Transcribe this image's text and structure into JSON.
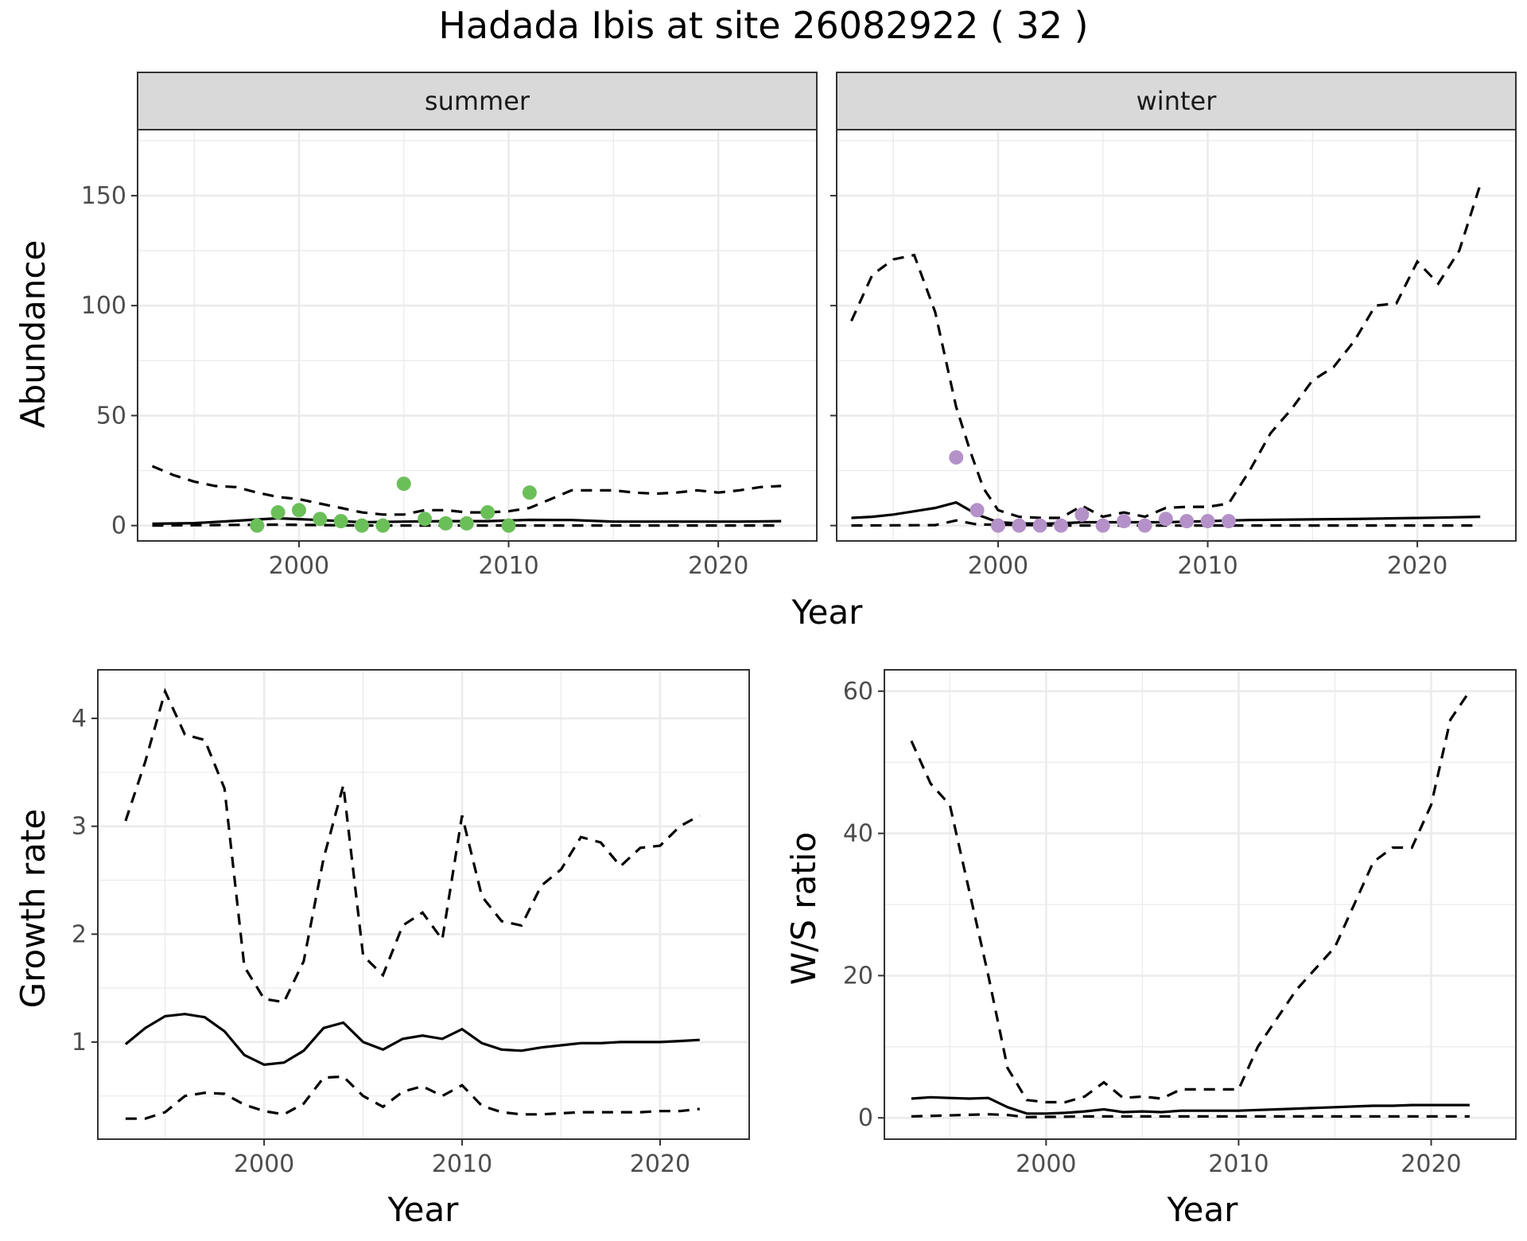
{
  "figure": {
    "title": "Hadada Ibis at site 26082922 ( 32 )"
  },
  "chart_data": [
    {
      "type": "line",
      "panel": "summer",
      "strip_label": "summer",
      "xlabel": "Year",
      "ylabel": "Abundance",
      "shared_xlabel": "Year",
      "xlim": [
        1992.3,
        2024.7
      ],
      "ylim": [
        -7,
        180
      ],
      "x_ticks": [
        2000,
        2010,
        2020
      ],
      "y_ticks": [
        0,
        50,
        100,
        150
      ],
      "point_color": "#6bbf59",
      "series": [
        {
          "role": "estimate",
          "style": "solid",
          "x": [
            1993,
            1995,
            1997,
            1999,
            2001,
            2003,
            2005,
            2007,
            2009,
            2011,
            2013,
            2015,
            2017,
            2019,
            2021,
            2023
          ],
          "values": [
            0.8,
            1.1,
            2.2,
            3.3,
            2.5,
            1.5,
            1.8,
            2,
            2,
            2.6,
            2.5,
            1.8,
            1.8,
            1.8,
            1.8,
            2
          ]
        },
        {
          "role": "upper",
          "style": "dashed",
          "x": [
            1993,
            1994,
            1995,
            1996,
            1997,
            1998,
            1999,
            2000,
            2001,
            2002,
            2003,
            2004,
            2005,
            2006,
            2007,
            2008,
            2009,
            2010,
            2011,
            2012,
            2013,
            2014,
            2015,
            2016,
            2017,
            2018,
            2019,
            2020,
            2021,
            2022,
            2023
          ],
          "values": [
            27,
            23,
            20,
            18,
            17.5,
            15,
            13,
            12,
            10,
            8,
            6,
            5,
            5,
            7,
            7,
            6,
            6,
            6.5,
            8,
            12,
            16,
            16,
            16,
            15,
            14.5,
            15,
            16,
            15,
            16,
            17.5,
            18
          ]
        },
        {
          "role": "lower",
          "style": "dashed",
          "x": [
            1993,
            1999,
            2003,
            2010,
            2015,
            2023
          ],
          "values": [
            0,
            0.4,
            0,
            0,
            0,
            0
          ]
        }
      ],
      "points": {
        "x": [
          1998,
          1999,
          2000,
          2001,
          2002,
          2003,
          2004,
          2005,
          2006,
          2007,
          2008,
          2009,
          2010,
          2011
        ],
        "values": [
          0,
          6,
          7,
          3,
          2,
          0,
          0,
          19,
          3,
          1,
          1,
          6,
          0,
          15
        ]
      }
    },
    {
      "type": "line",
      "panel": "winter",
      "strip_label": "winter",
      "xlabel": "Year",
      "ylabel": "",
      "xlim": [
        1992.3,
        2024.7
      ],
      "ylim": [
        -7,
        180
      ],
      "x_ticks": [
        2000,
        2010,
        2020
      ],
      "y_ticks": [
        0,
        50,
        100,
        150
      ],
      "point_color": "#b491c8",
      "series": [
        {
          "role": "estimate",
          "style": "solid",
          "x": [
            1993,
            1994,
            1995,
            1996,
            1997,
            1998,
            1999,
            2000,
            2001,
            2002,
            2003,
            2004,
            2005,
            2006,
            2007,
            2008,
            2009,
            2010,
            2011,
            2012,
            2015,
            2017,
            2019,
            2021,
            2023
          ],
          "values": [
            3.5,
            4,
            5,
            6.5,
            8,
            10.5,
            5,
            1.5,
            1,
            0.8,
            1,
            1.5,
            1.5,
            1.5,
            1.5,
            1.5,
            1.8,
            2,
            2.3,
            2.5,
            2.8,
            3,
            3.3,
            3.6,
            4
          ]
        },
        {
          "role": "upper",
          "style": "dashed",
          "x": [
            1993,
            1994,
            1995,
            1996,
            1997,
            1998,
            1998.7,
            1999.3,
            2000,
            2001,
            2002,
            2003,
            2004,
            2005,
            2006,
            2007,
            2008,
            2009,
            2010,
            2011,
            2012,
            2013,
            2014,
            2015,
            2016,
            2017,
            2018,
            2019,
            2020,
            2021,
            2022,
            2023
          ],
          "values": [
            93,
            114,
            121,
            123,
            97,
            54,
            33,
            17,
            7,
            4,
            3.5,
            3.5,
            9,
            4,
            6,
            4,
            8,
            8.5,
            8.5,
            10,
            25,
            42,
            53,
            66,
            72,
            84,
            100,
            101,
            120,
            110,
            125,
            155
          ]
        },
        {
          "role": "lower",
          "style": "dashed",
          "x": [
            1993,
            1997,
            1998,
            1999,
            2003,
            2010,
            2015,
            2023
          ],
          "values": [
            0,
            0.2,
            2.3,
            0.5,
            0,
            0,
            0,
            0
          ]
        }
      ],
      "points": {
        "x": [
          1998,
          1999,
          2000,
          2001,
          2002,
          2003,
          2004,
          2005,
          2006,
          2007,
          2008,
          2009,
          2010,
          2011
        ],
        "values": [
          31,
          7,
          0,
          0,
          0,
          0,
          5,
          0,
          2,
          0,
          3,
          2,
          2,
          2
        ]
      }
    },
    {
      "type": "line",
      "panel": "growth",
      "xlabel": "Year",
      "ylabel": "Growth rate",
      "xlim": [
        1991.6,
        2024.5
      ],
      "ylim": [
        0.1,
        4.45
      ],
      "x_ticks": [
        2000,
        2010,
        2020
      ],
      "y_ticks": [
        1,
        2,
        3,
        4
      ],
      "series": [
        {
          "role": "estimate",
          "style": "solid",
          "x": [
            1993,
            1994,
            1995,
            1996,
            1997,
            1998,
            1999,
            2000,
            2001,
            2002,
            2003,
            2004,
            2005,
            2006,
            2007,
            2008,
            2009,
            2010,
            2011,
            2012,
            2013,
            2014,
            2015,
            2016,
            2017,
            2018,
            2019,
            2020,
            2021,
            2022
          ],
          "values": [
            0.98,
            1.13,
            1.24,
            1.26,
            1.23,
            1.1,
            0.88,
            0.79,
            0.81,
            0.92,
            1.13,
            1.18,
            1,
            0.93,
            1.03,
            1.06,
            1.03,
            1.12,
            0.99,
            0.93,
            0.92,
            0.95,
            0.97,
            0.99,
            0.99,
            1,
            1,
            1,
            1.01,
            1.02
          ]
        },
        {
          "role": "upper",
          "style": "dashed",
          "x": [
            1993,
            1994,
            1995,
            1996,
            1997,
            1998,
            1999,
            2000,
            2001,
            2002,
            2003,
            2004,
            2005,
            2006,
            2007,
            2008,
            2009,
            2010,
            2011,
            2012,
            2013,
            2014,
            2015,
            2016,
            2017,
            2018,
            2019,
            2020,
            2021,
            2022
          ],
          "values": [
            3.05,
            3.6,
            4.25,
            3.85,
            3.8,
            3.35,
            1.7,
            1.4,
            1.37,
            1.75,
            2.7,
            3.38,
            1.8,
            1.62,
            2.08,
            2.2,
            1.95,
            3.1,
            2.35,
            2.12,
            2.08,
            2.45,
            2.6,
            2.9,
            2.85,
            2.63,
            2.8,
            2.82,
            3,
            3.1
          ]
        },
        {
          "role": "lower",
          "style": "dashed",
          "x": [
            1993,
            1994,
            1995,
            1996,
            1997,
            1998,
            1999,
            2000,
            2001,
            2002,
            2003,
            2004,
            2005,
            2006,
            2007,
            2008,
            2009,
            2010,
            2011,
            2012,
            2013,
            2014,
            2015,
            2016,
            2017,
            2018,
            2019,
            2020,
            2021,
            2022
          ],
          "values": [
            0.29,
            0.29,
            0.35,
            0.5,
            0.53,
            0.52,
            0.42,
            0.36,
            0.33,
            0.43,
            0.67,
            0.68,
            0.5,
            0.4,
            0.54,
            0.59,
            0.5,
            0.6,
            0.41,
            0.35,
            0.33,
            0.33,
            0.34,
            0.35,
            0.35,
            0.35,
            0.35,
            0.36,
            0.36,
            0.38
          ]
        }
      ]
    },
    {
      "type": "line",
      "panel": "ws_ratio",
      "xlabel": "Year",
      "ylabel": "W/S ratio",
      "xlim": [
        1991.6,
        2024.4
      ],
      "ylim": [
        -3,
        63
      ],
      "x_ticks": [
        2000,
        2010,
        2020
      ],
      "y_ticks": [
        0,
        20,
        40,
        60
      ],
      "series": [
        {
          "role": "estimate",
          "style": "solid",
          "x": [
            1993,
            1994,
            1995,
            1996,
            1997,
            1998,
            1999,
            2000,
            2001,
            2002,
            2003,
            2004,
            2005,
            2006,
            2007,
            2008,
            2009,
            2010,
            2011,
            2012,
            2013,
            2014,
            2015,
            2016,
            2017,
            2018,
            2019,
            2020,
            2021,
            2022
          ],
          "values": [
            2.7,
            2.9,
            2.8,
            2.7,
            2.8,
            1.5,
            0.6,
            0.6,
            0.7,
            0.9,
            1.2,
            0.8,
            0.9,
            0.8,
            1,
            1,
            1,
            1,
            1.1,
            1.2,
            1.3,
            1.4,
            1.5,
            1.6,
            1.7,
            1.7,
            1.8,
            1.8,
            1.8,
            1.8
          ]
        },
        {
          "role": "upper",
          "style": "dashed",
          "x": [
            1993,
            1994,
            1995,
            1996,
            1997,
            1998,
            1999,
            2000,
            2001,
            2002,
            2003,
            2004,
            2005,
            2006,
            2007,
            2008,
            2009,
            2010,
            2011,
            2012,
            2013,
            2014,
            2015,
            2016,
            2017,
            2018,
            2019,
            2020,
            2021,
            2022
          ],
          "values": [
            53,
            47,
            44,
            32,
            20,
            7,
            2.5,
            2.2,
            2.2,
            3,
            5,
            2.8,
            3,
            2.7,
            4,
            4,
            4,
            4,
            10,
            14,
            18,
            21,
            24,
            30,
            36,
            38,
            38,
            44,
            56,
            60
          ]
        },
        {
          "role": "lower",
          "style": "dashed",
          "x": [
            1993,
            1997,
            1998,
            1999,
            2002,
            2010,
            2015,
            2022
          ],
          "values": [
            0.2,
            0.5,
            0.4,
            0.1,
            0.2,
            0.2,
            0.2,
            0.2
          ]
        }
      ]
    }
  ]
}
